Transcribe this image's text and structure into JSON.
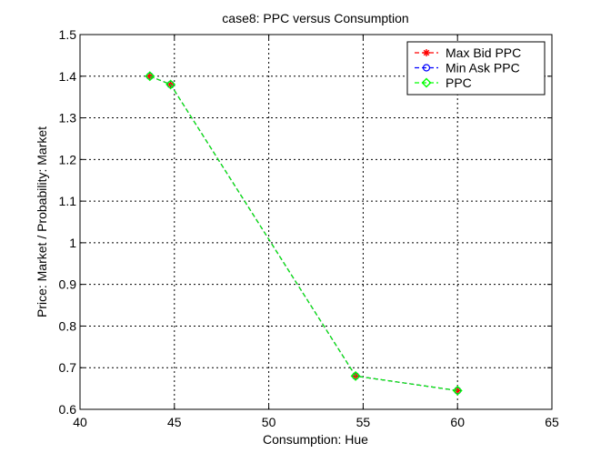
{
  "chart_data": {
    "type": "line",
    "title": "case8: PPC versus Consumption",
    "xlabel": "Consumption: Hue",
    "ylabel": "Price: Market / Probability: Market",
    "xlim": [
      40,
      65
    ],
    "ylim": [
      0.6,
      1.5
    ],
    "xticks": [
      40,
      45,
      50,
      55,
      60,
      65
    ],
    "yticks": [
      0.6,
      0.7,
      0.8,
      0.9,
      1.0,
      1.1,
      1.2,
      1.3,
      1.4,
      1.5
    ],
    "xtick_labels": [
      "40",
      "45",
      "50",
      "55",
      "60",
      "65"
    ],
    "ytick_labels": [
      "0.6",
      "0.7",
      "0.8",
      "0.9",
      "1",
      "1.1",
      "1.2",
      "1.3",
      "1.4",
      "1.5"
    ],
    "grid": true,
    "legend_position": "top-right",
    "series": [
      {
        "name": "Max Bid PPC",
        "color": "#ff0000",
        "marker": "asterisk",
        "x": [
          43.7,
          44.8,
          54.6,
          60.0
        ],
        "y": [
          1.4,
          1.38,
          0.68,
          0.645
        ]
      },
      {
        "name": "Min Ask PPC",
        "color": "#0000ff",
        "marker": "circle",
        "x": [
          43.7,
          44.8,
          54.6,
          60.0
        ],
        "y": [
          1.4,
          1.38,
          0.68,
          0.645
        ]
      },
      {
        "name": "PPC",
        "color": "#00ff00",
        "marker": "diamond",
        "x": [
          43.7,
          44.8,
          54.6,
          60.0
        ],
        "y": [
          1.4,
          1.38,
          0.68,
          0.645
        ]
      }
    ]
  }
}
